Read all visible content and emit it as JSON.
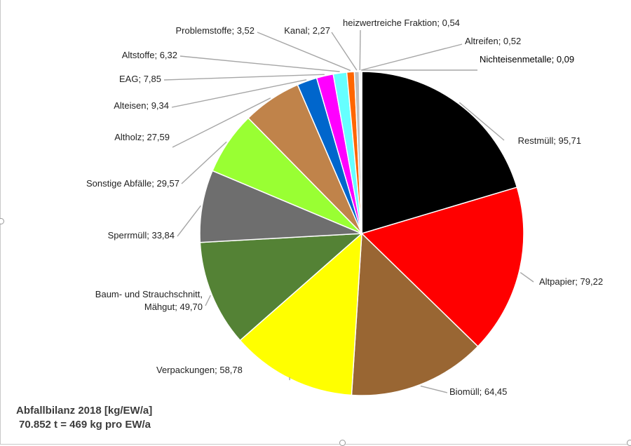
{
  "chart_data": {
    "type": "pie",
    "unit": "kg/EW/a",
    "slices": [
      {
        "label": "Restmüll",
        "value": 95.71,
        "display": "Restmüll; 95,71",
        "color": "#000000"
      },
      {
        "label": "Altpapier",
        "value": 79.22,
        "display": "Altpapier; 79,22",
        "color": "#ff0000"
      },
      {
        "label": "Biomüll",
        "value": 64.45,
        "display": "Biomüll; 64,45",
        "color": "#996633"
      },
      {
        "label": "Verpackungen",
        "value": 58.78,
        "display": "Verpackungen; 58,78",
        "color": "#ffff00"
      },
      {
        "label": "Baum- und Strauchschnitt, Mähgut",
        "value": 49.7,
        "display": [
          "Baum- und Strauchschnitt,",
          "Mähgut; 49,70"
        ],
        "color": "#548235"
      },
      {
        "label": "Sperrmüll",
        "value": 33.84,
        "display": "Sperrmüll; 33,84",
        "color": "#6e6e6e"
      },
      {
        "label": "Sonstige Abfälle",
        "value": 29.57,
        "display": "Sonstige Abfälle; 29,57",
        "color": "#99ff33"
      },
      {
        "label": "Altholz",
        "value": 27.59,
        "display": "Altholz; 27,59",
        "color": "#c0834a"
      },
      {
        "label": "Alteisen",
        "value": 9.34,
        "display": "Alteisen; 9,34",
        "color": "#0066cc"
      },
      {
        "label": "EAG",
        "value": 7.85,
        "display": "EAG; 7,85",
        "color": "#ff00ff"
      },
      {
        "label": "Altstoffe",
        "value": 6.32,
        "display": "Altstoffe; 6,32",
        "color": "#66ffff"
      },
      {
        "label": "Problemstoffe",
        "value": 3.52,
        "display": "Problemstoffe; 3,52",
        "color": "#ff6600"
      },
      {
        "label": "Kanal",
        "value": 2.27,
        "display": "Kanal; 2,27",
        "color": "#bfbfbf"
      },
      {
        "label": "heizwertreiche Fraktion",
        "value": 0.54,
        "display": "heizwertreiche Fraktion; 0,54",
        "color": "#7f7f7f"
      },
      {
        "label": "Altreifen",
        "value": 0.52,
        "display": "Altreifen; 0,52",
        "color": "#a5a5a5"
      },
      {
        "label": "Nichteisenmetalle",
        "value": 0.09,
        "display": "Nichteisenmetalle; 0,09",
        "color": "#d9d9d9"
      }
    ]
  },
  "summary": {
    "line1": "Abfallbilanz 2018 [kg/EW/a]",
    "line2": "70.852 t = 469 kg pro EW/a"
  }
}
